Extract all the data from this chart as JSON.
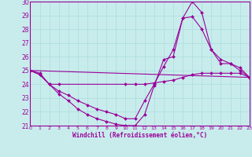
{
  "xlabel": "Windchill (Refroidissement éolien,°C)",
  "xlim": [
    0,
    23
  ],
  "ylim": [
    21,
    30
  ],
  "yticks": [
    21,
    22,
    23,
    24,
    25,
    26,
    27,
    28,
    29,
    30
  ],
  "xticks": [
    0,
    1,
    2,
    3,
    4,
    5,
    6,
    7,
    8,
    9,
    10,
    11,
    12,
    13,
    14,
    15,
    16,
    17,
    18,
    19,
    20,
    21,
    22,
    23
  ],
  "bg_color": "#c8ecec",
  "line_color": "#990099",
  "grid_color": "#aadddd",
  "lines": [
    {
      "x": [
        0,
        1,
        2,
        3,
        10,
        11,
        12,
        13,
        14,
        15,
        16,
        17,
        18,
        19,
        20,
        21,
        22,
        23
      ],
      "y": [
        25.0,
        24.7,
        24.0,
        24.0,
        24.0,
        24.0,
        24.0,
        24.1,
        24.2,
        24.3,
        24.5,
        24.7,
        24.8,
        24.8,
        24.8,
        24.8,
        24.8,
        24.5
      ]
    },
    {
      "x": [
        0,
        1,
        2,
        3,
        4,
        5,
        6,
        7,
        8,
        9,
        10,
        11,
        12,
        13,
        14,
        15,
        16,
        17,
        18,
        19,
        20,
        21,
        22,
        23
      ],
      "y": [
        25.0,
        24.7,
        24.0,
        23.3,
        22.8,
        22.2,
        21.8,
        21.5,
        21.3,
        21.1,
        21.0,
        21.0,
        21.8,
        23.9,
        25.8,
        26.0,
        28.8,
        30.0,
        29.2,
        26.5,
        25.8,
        25.5,
        25.0,
        24.5
      ]
    },
    {
      "x": [
        0,
        1,
        2,
        3,
        4,
        5,
        6,
        7,
        8,
        9,
        10,
        11,
        12,
        13,
        14,
        15,
        16,
        17,
        18,
        19,
        20,
        21,
        22,
        23
      ],
      "y": [
        25.0,
        24.8,
        24.0,
        23.5,
        23.2,
        22.8,
        22.5,
        22.2,
        22.0,
        21.8,
        21.5,
        21.5,
        22.8,
        24.0,
        25.3,
        26.5,
        28.8,
        28.9,
        28.0,
        26.5,
        25.5,
        25.5,
        25.2,
        24.5
      ]
    },
    {
      "x": [
        0,
        23
      ],
      "y": [
        25.0,
        24.5
      ]
    }
  ]
}
